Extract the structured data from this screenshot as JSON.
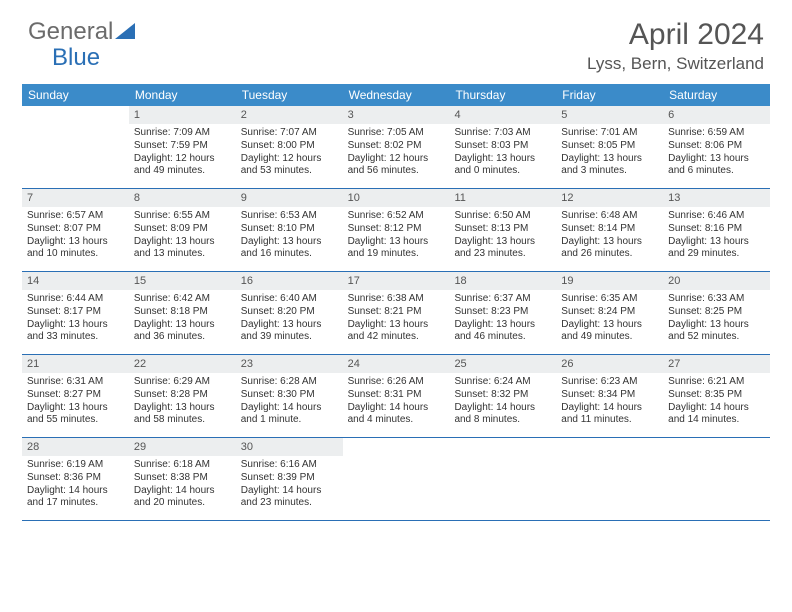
{
  "logo": {
    "text1": "General",
    "text2": "Blue"
  },
  "title": "April 2024",
  "location": "Lyss, Bern, Switzerland",
  "colors": {
    "header_bar": "#3b8bc9",
    "accent": "#2a6fb5",
    "daynum_bg": "#eceeef",
    "text": "#333333",
    "muted": "#555555",
    "bg": "#ffffff"
  },
  "weekdays": [
    "Sunday",
    "Monday",
    "Tuesday",
    "Wednesday",
    "Thursday",
    "Friday",
    "Saturday"
  ],
  "weeks": [
    [
      {
        "empty": true
      },
      {
        "num": "1",
        "sunrise": "Sunrise: 7:09 AM",
        "sunset": "Sunset: 7:59 PM",
        "daylight": "Daylight: 12 hours and 49 minutes."
      },
      {
        "num": "2",
        "sunrise": "Sunrise: 7:07 AM",
        "sunset": "Sunset: 8:00 PM",
        "daylight": "Daylight: 12 hours and 53 minutes."
      },
      {
        "num": "3",
        "sunrise": "Sunrise: 7:05 AM",
        "sunset": "Sunset: 8:02 PM",
        "daylight": "Daylight: 12 hours and 56 minutes."
      },
      {
        "num": "4",
        "sunrise": "Sunrise: 7:03 AM",
        "sunset": "Sunset: 8:03 PM",
        "daylight": "Daylight: 13 hours and 0 minutes."
      },
      {
        "num": "5",
        "sunrise": "Sunrise: 7:01 AM",
        "sunset": "Sunset: 8:05 PM",
        "daylight": "Daylight: 13 hours and 3 minutes."
      },
      {
        "num": "6",
        "sunrise": "Sunrise: 6:59 AM",
        "sunset": "Sunset: 8:06 PM",
        "daylight": "Daylight: 13 hours and 6 minutes."
      }
    ],
    [
      {
        "num": "7",
        "sunrise": "Sunrise: 6:57 AM",
        "sunset": "Sunset: 8:07 PM",
        "daylight": "Daylight: 13 hours and 10 minutes."
      },
      {
        "num": "8",
        "sunrise": "Sunrise: 6:55 AM",
        "sunset": "Sunset: 8:09 PM",
        "daylight": "Daylight: 13 hours and 13 minutes."
      },
      {
        "num": "9",
        "sunrise": "Sunrise: 6:53 AM",
        "sunset": "Sunset: 8:10 PM",
        "daylight": "Daylight: 13 hours and 16 minutes."
      },
      {
        "num": "10",
        "sunrise": "Sunrise: 6:52 AM",
        "sunset": "Sunset: 8:12 PM",
        "daylight": "Daylight: 13 hours and 19 minutes."
      },
      {
        "num": "11",
        "sunrise": "Sunrise: 6:50 AM",
        "sunset": "Sunset: 8:13 PM",
        "daylight": "Daylight: 13 hours and 23 minutes."
      },
      {
        "num": "12",
        "sunrise": "Sunrise: 6:48 AM",
        "sunset": "Sunset: 8:14 PM",
        "daylight": "Daylight: 13 hours and 26 minutes."
      },
      {
        "num": "13",
        "sunrise": "Sunrise: 6:46 AM",
        "sunset": "Sunset: 8:16 PM",
        "daylight": "Daylight: 13 hours and 29 minutes."
      }
    ],
    [
      {
        "num": "14",
        "sunrise": "Sunrise: 6:44 AM",
        "sunset": "Sunset: 8:17 PM",
        "daylight": "Daylight: 13 hours and 33 minutes."
      },
      {
        "num": "15",
        "sunrise": "Sunrise: 6:42 AM",
        "sunset": "Sunset: 8:18 PM",
        "daylight": "Daylight: 13 hours and 36 minutes."
      },
      {
        "num": "16",
        "sunrise": "Sunrise: 6:40 AM",
        "sunset": "Sunset: 8:20 PM",
        "daylight": "Daylight: 13 hours and 39 minutes."
      },
      {
        "num": "17",
        "sunrise": "Sunrise: 6:38 AM",
        "sunset": "Sunset: 8:21 PM",
        "daylight": "Daylight: 13 hours and 42 minutes."
      },
      {
        "num": "18",
        "sunrise": "Sunrise: 6:37 AM",
        "sunset": "Sunset: 8:23 PM",
        "daylight": "Daylight: 13 hours and 46 minutes."
      },
      {
        "num": "19",
        "sunrise": "Sunrise: 6:35 AM",
        "sunset": "Sunset: 8:24 PM",
        "daylight": "Daylight: 13 hours and 49 minutes."
      },
      {
        "num": "20",
        "sunrise": "Sunrise: 6:33 AM",
        "sunset": "Sunset: 8:25 PM",
        "daylight": "Daylight: 13 hours and 52 minutes."
      }
    ],
    [
      {
        "num": "21",
        "sunrise": "Sunrise: 6:31 AM",
        "sunset": "Sunset: 8:27 PM",
        "daylight": "Daylight: 13 hours and 55 minutes."
      },
      {
        "num": "22",
        "sunrise": "Sunrise: 6:29 AM",
        "sunset": "Sunset: 8:28 PM",
        "daylight": "Daylight: 13 hours and 58 minutes."
      },
      {
        "num": "23",
        "sunrise": "Sunrise: 6:28 AM",
        "sunset": "Sunset: 8:30 PM",
        "daylight": "Daylight: 14 hours and 1 minute."
      },
      {
        "num": "24",
        "sunrise": "Sunrise: 6:26 AM",
        "sunset": "Sunset: 8:31 PM",
        "daylight": "Daylight: 14 hours and 4 minutes."
      },
      {
        "num": "25",
        "sunrise": "Sunrise: 6:24 AM",
        "sunset": "Sunset: 8:32 PM",
        "daylight": "Daylight: 14 hours and 8 minutes."
      },
      {
        "num": "26",
        "sunrise": "Sunrise: 6:23 AM",
        "sunset": "Sunset: 8:34 PM",
        "daylight": "Daylight: 14 hours and 11 minutes."
      },
      {
        "num": "27",
        "sunrise": "Sunrise: 6:21 AM",
        "sunset": "Sunset: 8:35 PM",
        "daylight": "Daylight: 14 hours and 14 minutes."
      }
    ],
    [
      {
        "num": "28",
        "sunrise": "Sunrise: 6:19 AM",
        "sunset": "Sunset: 8:36 PM",
        "daylight": "Daylight: 14 hours and 17 minutes."
      },
      {
        "num": "29",
        "sunrise": "Sunrise: 6:18 AM",
        "sunset": "Sunset: 8:38 PM",
        "daylight": "Daylight: 14 hours and 20 minutes."
      },
      {
        "num": "30",
        "sunrise": "Sunrise: 6:16 AM",
        "sunset": "Sunset: 8:39 PM",
        "daylight": "Daylight: 14 hours and 23 minutes."
      },
      {
        "empty": true
      },
      {
        "empty": true
      },
      {
        "empty": true
      },
      {
        "empty": true
      }
    ]
  ]
}
